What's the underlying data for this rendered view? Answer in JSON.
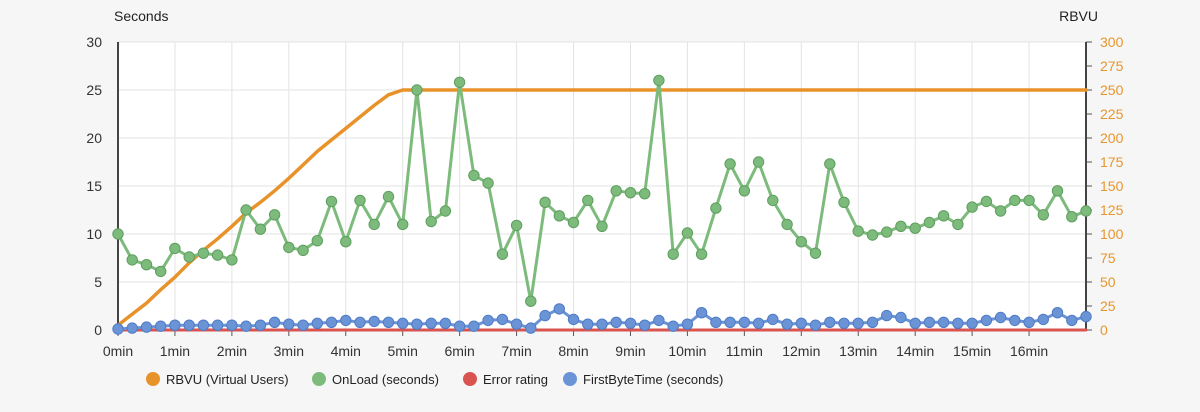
{
  "chart_data": {
    "type": "line",
    "ylabel_left": "Seconds",
    "ylabel_right": "RBVU",
    "ylim_left": [
      0,
      30
    ],
    "ylim_right": [
      0,
      300
    ],
    "yticks_left": [
      0,
      5,
      10,
      15,
      20,
      25,
      30
    ],
    "yticks_right": [
      0,
      25,
      50,
      75,
      100,
      125,
      150,
      175,
      200,
      225,
      250,
      275,
      300
    ],
    "xlim_minutes": [
      0,
      17
    ],
    "x_tick_labels": [
      "0min",
      "1min",
      "2min",
      "3min",
      "4min",
      "5min",
      "6min",
      "7min",
      "8min",
      "9min",
      "10min",
      "11min",
      "12min",
      "13min",
      "14min",
      "15min",
      "16min"
    ],
    "grid": true,
    "legend_position": "bottom",
    "series": [
      {
        "name": "RBVU (Virtual Users)",
        "axis": "right",
        "color": "#e8922a",
        "markers": false,
        "x": [
          0,
          0.5,
          0.75,
          1,
          1.25,
          1.5,
          1.75,
          2,
          2.25,
          2.5,
          2.75,
          3,
          3.25,
          3.5,
          3.75,
          4,
          4.25,
          4.5,
          4.75,
          5,
          5.25,
          17
        ],
        "y": [
          5,
          28,
          42,
          55,
          70,
          83,
          95,
          108,
          122,
          133,
          145,
          158,
          172,
          186,
          198,
          210,
          222,
          234,
          245,
          250,
          250,
          250
        ]
      },
      {
        "name": "OnLoad (seconds)",
        "axis": "left",
        "color": "#7dbb7d",
        "markers": true,
        "x": [
          0,
          0.25,
          0.5,
          0.75,
          1,
          1.25,
          1.5,
          1.75,
          2,
          2.25,
          2.5,
          2.75,
          3,
          3.25,
          3.5,
          3.75,
          4,
          4.25,
          4.5,
          4.75,
          5,
          5.25,
          5.5,
          5.75,
          6,
          6.25,
          6.5,
          6.75,
          7,
          7.25,
          7.5,
          7.75,
          8,
          8.25,
          8.5,
          8.75,
          9,
          9.25,
          9.5,
          9.75,
          10,
          10.25,
          10.5,
          10.75,
          11,
          11.25,
          11.5,
          11.75,
          12,
          12.25,
          12.5,
          12.75,
          13,
          13.25,
          13.5,
          13.75,
          14,
          14.25,
          14.5,
          14.75,
          15,
          15.25,
          15.5,
          15.75,
          16,
          16.25,
          16.5,
          16.75,
          17
        ],
        "y": [
          10,
          7.3,
          6.8,
          6.1,
          8.5,
          7.6,
          8,
          7.8,
          7.3,
          12.5,
          10.5,
          12,
          8.6,
          8.3,
          9.3,
          13.4,
          9.2,
          13.5,
          11,
          13.9,
          11,
          25,
          11.3,
          12.4,
          25.8,
          16.1,
          15.3,
          7.9,
          10.9,
          3,
          13.3,
          11.9,
          11.2,
          13.5,
          10.8,
          14.5,
          14.3,
          14.2,
          26,
          7.9,
          10.1,
          7.9,
          12.7,
          17.3,
          14.5,
          17.5,
          13.5,
          11,
          9.2,
          8,
          17.3,
          13.3,
          10.3,
          9.9,
          10.2,
          10.8,
          10.6,
          11.2,
          11.9,
          11,
          12.8,
          13.4,
          12.4,
          13.5,
          13.5,
          12,
          14.5,
          11.8,
          12.4
        ]
      },
      {
        "name": "Error rating",
        "axis": "left",
        "color": "#d9534f",
        "markers": false,
        "x": [
          0,
          17
        ],
        "y": [
          0,
          0
        ]
      },
      {
        "name": "FirstByteTime (seconds)",
        "axis": "left",
        "color": "#6b94d6",
        "markers": true,
        "x": [
          0,
          0.25,
          0.5,
          0.75,
          1,
          1.25,
          1.5,
          1.75,
          2,
          2.25,
          2.5,
          2.75,
          3,
          3.25,
          3.5,
          3.75,
          4,
          4.25,
          4.5,
          4.75,
          5,
          5.25,
          5.5,
          5.75,
          6,
          6.25,
          6.5,
          6.75,
          7,
          7.25,
          7.5,
          7.75,
          8,
          8.25,
          8.5,
          8.75,
          9,
          9.25,
          9.5,
          9.75,
          10,
          10.25,
          10.5,
          10.75,
          11,
          11.25,
          11.5,
          11.75,
          12,
          12.25,
          12.5,
          12.75,
          13,
          13.25,
          13.5,
          13.75,
          14,
          14.25,
          14.5,
          14.75,
          15,
          15.25,
          15.5,
          15.75,
          16,
          16.25,
          16.5,
          16.75,
          17
        ],
        "y": [
          0.1,
          0.2,
          0.3,
          0.4,
          0.5,
          0.5,
          0.5,
          0.5,
          0.5,
          0.4,
          0.5,
          0.8,
          0.6,
          0.5,
          0.7,
          0.8,
          1.0,
          0.8,
          0.9,
          0.8,
          0.7,
          0.6,
          0.7,
          0.7,
          0.4,
          0.4,
          1.0,
          1.1,
          0.6,
          0.2,
          1.5,
          2.2,
          1.1,
          0.6,
          0.6,
          0.8,
          0.7,
          0.5,
          1.0,
          0.4,
          0.6,
          1.8,
          0.8,
          0.8,
          0.8,
          0.7,
          1.1,
          0.6,
          0.7,
          0.5,
          0.8,
          0.7,
          0.7,
          0.8,
          1.5,
          1.3,
          0.7,
          0.8,
          0.8,
          0.7,
          0.7,
          1.0,
          1.3,
          1.0,
          0.8,
          1.1,
          1.8,
          1.0,
          1.4
        ]
      }
    ]
  }
}
